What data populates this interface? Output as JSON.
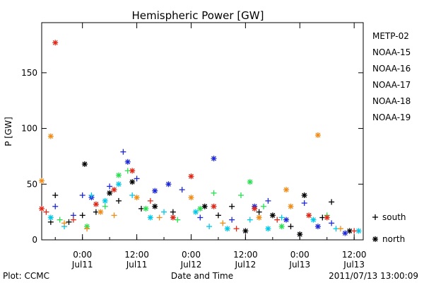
{
  "chart_data": {
    "type": "scatter",
    "title": "Hemispheric Power [GW]",
    "ylabel": "P [GW]",
    "xlabel": "Date and Time",
    "ylim": [
      0,
      195
    ],
    "xlim": [
      "2011-07-10T15:00",
      "2011-07-13T14:00"
    ],
    "y_ticks": [
      0,
      50,
      100,
      150
    ],
    "x_ticks": [
      {
        "t": "2011-07-11T00:00",
        "time": "0:00",
        "day": "Jul11"
      },
      {
        "t": "2011-07-11T12:00",
        "time": "12:00",
        "day": "Jul11"
      },
      {
        "t": "2011-07-12T00:00",
        "time": "0:00",
        "day": "Jul12"
      },
      {
        "t": "2011-07-12T12:00",
        "time": "12:00",
        "day": "Jul12"
      },
      {
        "t": "2011-07-13T00:00",
        "time": "0:00",
        "day": "Jul13"
      },
      {
        "t": "2011-07-13T12:00",
        "time": "12:00",
        "day": "Jul13"
      }
    ],
    "grid": false,
    "legend_position": "right",
    "marker_legend": [
      {
        "symbol": "+",
        "label": "south"
      },
      {
        "symbol": "*",
        "label": "north"
      }
    ],
    "series": [
      {
        "name": "METP-02",
        "color": "#000000",
        "points": [
          {
            "x": "2011-07-10T17:00",
            "y": 16,
            "m": "+"
          },
          {
            "x": "2011-07-10T18:00",
            "y": 40,
            "m": "+"
          },
          {
            "x": "2011-07-10T21:00",
            "y": 16,
            "m": "+"
          },
          {
            "x": "2011-07-11T00:00",
            "y": 22,
            "m": "+"
          },
          {
            "x": "2011-07-11T00:30",
            "y": 68,
            "m": "*"
          },
          {
            "x": "2011-07-11T03:00",
            "y": 25,
            "m": "+"
          },
          {
            "x": "2011-07-11T06:00",
            "y": 42,
            "m": "*"
          },
          {
            "x": "2011-07-11T08:00",
            "y": 35,
            "m": "+"
          },
          {
            "x": "2011-07-11T11:00",
            "y": 52,
            "m": "*"
          },
          {
            "x": "2011-07-11T13:00",
            "y": 28,
            "m": "+"
          },
          {
            "x": "2011-07-11T16:00",
            "y": 30,
            "m": "*"
          },
          {
            "x": "2011-07-11T20:00",
            "y": 25,
            "m": "+"
          },
          {
            "x": "2011-07-12T03:00",
            "y": 30,
            "m": "*"
          },
          {
            "x": "2011-07-12T06:00",
            "y": 22,
            "m": "+"
          },
          {
            "x": "2011-07-12T09:00",
            "y": 30,
            "m": "+"
          },
          {
            "x": "2011-07-12T12:00",
            "y": 8,
            "m": "*"
          },
          {
            "x": "2011-07-12T15:00",
            "y": 25,
            "m": "+"
          },
          {
            "x": "2011-07-12T18:00",
            "y": 22,
            "m": "*"
          },
          {
            "x": "2011-07-12T22:00",
            "y": 12,
            "m": "+"
          },
          {
            "x": "2011-07-13T00:00",
            "y": 5,
            "m": "*"
          },
          {
            "x": "2011-07-13T01:00",
            "y": 40,
            "m": "*"
          },
          {
            "x": "2011-07-13T05:00",
            "y": 20,
            "m": "+"
          },
          {
            "x": "2011-07-13T07:00",
            "y": 34,
            "m": "+"
          },
          {
            "x": "2011-07-13T11:00",
            "y": 8,
            "m": "*"
          }
        ]
      },
      {
        "name": "NOAA-15",
        "color": "#1c28d8",
        "points": [
          {
            "x": "2011-07-10T18:00",
            "y": 30,
            "m": "+"
          },
          {
            "x": "2011-07-10T22:00",
            "y": 22,
            "m": "+"
          },
          {
            "x": "2011-07-11T00:00",
            "y": 40,
            "m": "+"
          },
          {
            "x": "2011-07-11T02:00",
            "y": 38,
            "m": "*"
          },
          {
            "x": "2011-07-11T06:00",
            "y": 48,
            "m": "+"
          },
          {
            "x": "2011-07-11T09:00",
            "y": 79,
            "m": "+"
          },
          {
            "x": "2011-07-11T10:00",
            "y": 70,
            "m": "*"
          },
          {
            "x": "2011-07-11T12:00",
            "y": 55,
            "m": "+"
          },
          {
            "x": "2011-07-11T16:00",
            "y": 44,
            "m": "*"
          },
          {
            "x": "2011-07-11T19:00",
            "y": 50,
            "m": "*"
          },
          {
            "x": "2011-07-11T22:00",
            "y": 45,
            "m": "+"
          },
          {
            "x": "2011-07-12T02:00",
            "y": 20,
            "m": "+"
          },
          {
            "x": "2011-07-12T05:00",
            "y": 73,
            "m": "*"
          },
          {
            "x": "2011-07-12T09:00",
            "y": 18,
            "m": "+"
          },
          {
            "x": "2011-07-12T14:00",
            "y": 30,
            "m": "*"
          },
          {
            "x": "2011-07-12T17:00",
            "y": 35,
            "m": "+"
          },
          {
            "x": "2011-07-12T21:00",
            "y": 18,
            "m": "*"
          },
          {
            "x": "2011-07-13T01:00",
            "y": 33,
            "m": "+"
          },
          {
            "x": "2011-07-13T04:00",
            "y": 12,
            "m": "*"
          },
          {
            "x": "2011-07-13T07:00",
            "y": 15,
            "m": "+"
          },
          {
            "x": "2011-07-13T10:00",
            "y": 6,
            "m": "*"
          }
        ]
      },
      {
        "name": "NOAA-16",
        "color": "#00c8e8",
        "points": [
          {
            "x": "2011-07-10T17:00",
            "y": 20,
            "m": "*"
          },
          {
            "x": "2011-07-10T20:00",
            "y": 12,
            "m": "+"
          },
          {
            "x": "2011-07-11T02:00",
            "y": 40,
            "m": "+"
          },
          {
            "x": "2011-07-11T05:00",
            "y": 35,
            "m": "*"
          },
          {
            "x": "2011-07-11T08:00",
            "y": 50,
            "m": "*"
          },
          {
            "x": "2011-07-11T11:00",
            "y": 40,
            "m": "+"
          },
          {
            "x": "2011-07-11T15:00",
            "y": 20,
            "m": "*"
          },
          {
            "x": "2011-07-11T18:00",
            "y": 25,
            "m": "+"
          },
          {
            "x": "2011-07-12T01:00",
            "y": 25,
            "m": "*"
          },
          {
            "x": "2011-07-12T04:00",
            "y": 12,
            "m": "+"
          },
          {
            "x": "2011-07-12T08:00",
            "y": 10,
            "m": "*"
          },
          {
            "x": "2011-07-12T13:00",
            "y": 18,
            "m": "+"
          },
          {
            "x": "2011-07-12T17:00",
            "y": 10,
            "m": "*"
          },
          {
            "x": "2011-07-12T20:00",
            "y": 20,
            "m": "+"
          },
          {
            "x": "2011-07-13T03:00",
            "y": 18,
            "m": "*"
          },
          {
            "x": "2011-07-13T08:00",
            "y": 10,
            "m": "+"
          },
          {
            "x": "2011-07-13T13:00",
            "y": 8,
            "m": "*"
          }
        ]
      },
      {
        "name": "NOAA-17",
        "color": "#28e050",
        "points": [
          {
            "x": "2011-07-10T19:00",
            "y": 18,
            "m": "+"
          },
          {
            "x": "2011-07-11T01:00",
            "y": 12,
            "m": "*"
          },
          {
            "x": "2011-07-11T05:00",
            "y": 30,
            "m": "+"
          },
          {
            "x": "2011-07-11T08:00",
            "y": 58,
            "m": "*"
          },
          {
            "x": "2011-07-11T10:00",
            "y": 62,
            "m": "+"
          },
          {
            "x": "2011-07-11T14:00",
            "y": 28,
            "m": "*"
          },
          {
            "x": "2011-07-11T21:00",
            "y": 18,
            "m": "+"
          },
          {
            "x": "2011-07-12T02:00",
            "y": 28,
            "m": "*"
          },
          {
            "x": "2011-07-12T05:00",
            "y": 42,
            "m": "+"
          },
          {
            "x": "2011-07-12T11:00",
            "y": 40,
            "m": "+"
          },
          {
            "x": "2011-07-12T13:00",
            "y": 52,
            "m": "*"
          },
          {
            "x": "2011-07-12T16:00",
            "y": 30,
            "m": "+"
          },
          {
            "x": "2011-07-12T20:00",
            "y": 12,
            "m": "*"
          },
          {
            "x": "2011-07-13T06:00",
            "y": 22,
            "m": "+"
          }
        ]
      },
      {
        "name": "NOAA-18",
        "color": "#f08c18",
        "points": [
          {
            "x": "2011-07-10T15:00",
            "y": 53,
            "m": "*"
          },
          {
            "x": "2011-07-10T17:00",
            "y": 93,
            "m": "*"
          },
          {
            "x": "2011-07-10T20:00",
            "y": 15,
            "m": "+"
          },
          {
            "x": "2011-07-11T01:00",
            "y": 10,
            "m": "+"
          },
          {
            "x": "2011-07-11T04:00",
            "y": 25,
            "m": "*"
          },
          {
            "x": "2011-07-11T07:00",
            "y": 22,
            "m": "+"
          },
          {
            "x": "2011-07-11T12:00",
            "y": 38,
            "m": "*"
          },
          {
            "x": "2011-07-11T17:00",
            "y": 20,
            "m": "+"
          },
          {
            "x": "2011-07-12T00:00",
            "y": 38,
            "m": "*"
          },
          {
            "x": "2011-07-12T07:00",
            "y": 15,
            "m": "+"
          },
          {
            "x": "2011-07-12T15:00",
            "y": 20,
            "m": "*"
          },
          {
            "x": "2011-07-12T21:00",
            "y": 45,
            "m": "*"
          },
          {
            "x": "2011-07-12T22:00",
            "y": 30,
            "m": "*"
          },
          {
            "x": "2011-07-13T04:00",
            "y": 94,
            "m": "*"
          },
          {
            "x": "2011-07-13T09:00",
            "y": 10,
            "m": "+"
          }
        ]
      },
      {
        "name": "NOAA-19",
        "color": "#e02818",
        "points": [
          {
            "x": "2011-07-10T15:00",
            "y": 28,
            "m": "*"
          },
          {
            "x": "2011-07-10T16:00",
            "y": 25,
            "m": "+"
          },
          {
            "x": "2011-07-10T18:00",
            "y": 177,
            "m": "*"
          },
          {
            "x": "2011-07-10T22:00",
            "y": 18,
            "m": "+"
          },
          {
            "x": "2011-07-11T03:00",
            "y": 32,
            "m": "*"
          },
          {
            "x": "2011-07-11T07:00",
            "y": 45,
            "m": "*"
          },
          {
            "x": "2011-07-11T11:00",
            "y": 62,
            "m": "*"
          },
          {
            "x": "2011-07-11T15:00",
            "y": 35,
            "m": "+"
          },
          {
            "x": "2011-07-11T20:00",
            "y": 20,
            "m": "*"
          },
          {
            "x": "2011-07-12T00:00",
            "y": 57,
            "m": "*"
          },
          {
            "x": "2011-07-12T05:00",
            "y": 30,
            "m": "*"
          },
          {
            "x": "2011-07-12T10:00",
            "y": 10,
            "m": "+"
          },
          {
            "x": "2011-07-12T14:00",
            "y": 28,
            "m": "*"
          },
          {
            "x": "2011-07-12T19:00",
            "y": 18,
            "m": "+"
          },
          {
            "x": "2011-07-13T02:00",
            "y": 22,
            "m": "*"
          },
          {
            "x": "2011-07-13T06:00",
            "y": 20,
            "m": "*"
          },
          {
            "x": "2011-07-13T12:00",
            "y": 8,
            "m": "+"
          }
        ]
      }
    ]
  },
  "footer": {
    "left": "Plot: CCMC",
    "center": "Date and Time",
    "right": "2011/07/13 13:00:09"
  }
}
